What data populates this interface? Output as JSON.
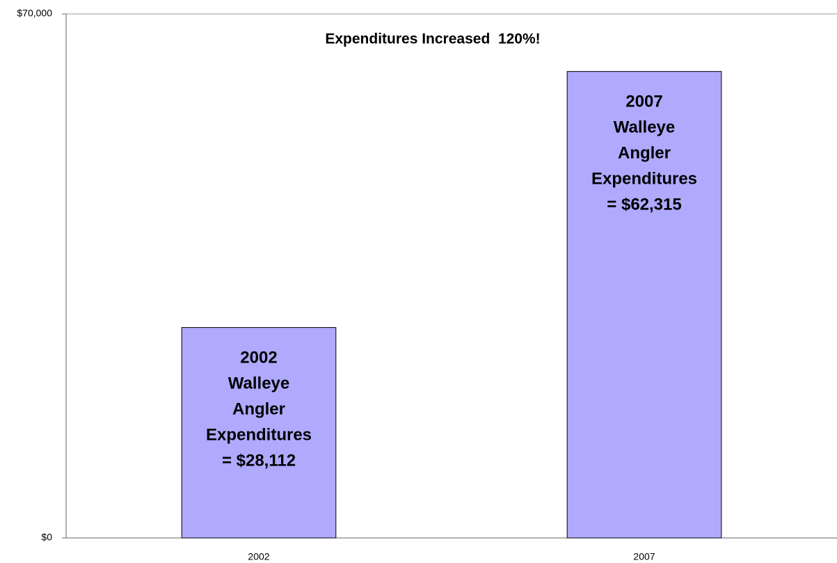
{
  "chart_data": {
    "type": "bar",
    "title": "Expenditures Increased  120%!",
    "categories": [
      "2002",
      "2007"
    ],
    "values": [
      28112,
      62315
    ],
    "value_labels": [
      "2002\nWalleye\nAngler\nExpenditures\n= $28,112",
      "2007\nWalleye\nAngler\nExpenditures\n= $62,315"
    ],
    "color": "#b0aaff",
    "ylim": [
      0,
      70000
    ],
    "yticks": [
      {
        "value": 0,
        "label": "$0"
      },
      {
        "value": 70000,
        "label": "$70,000"
      }
    ],
    "grid": false
  }
}
